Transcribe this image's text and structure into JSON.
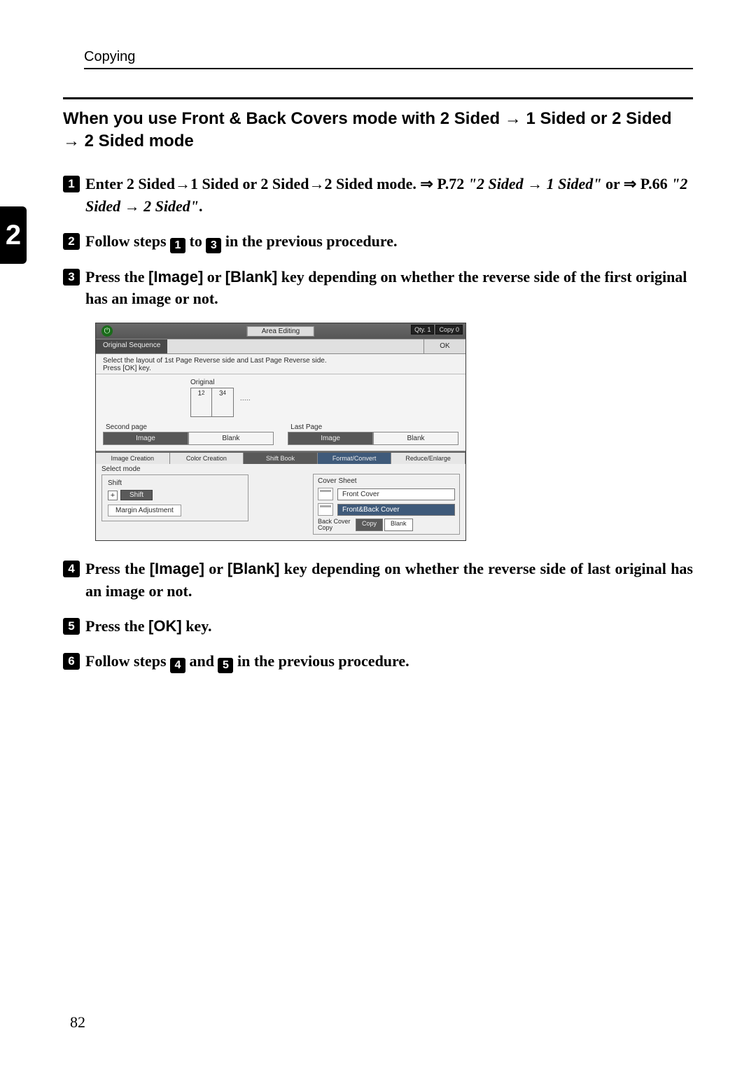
{
  "running_head": "Copying",
  "chapter_tab": "2",
  "section_title_parts": {
    "a": "When you use Front & Back Covers mode with 2 Sided ",
    "b": " 1 Sided or 2 Sided ",
    "c": " 2 Sided mode"
  },
  "page_number": "82",
  "steps": {
    "s1": {
      "a": "Enter 2 Sided",
      "b": "1 Sided or 2 Sided",
      "c": "2 Sided mode. ",
      "p72": " P.72 ",
      "ref1a": "\"2 Sided ",
      "ref1b": " 1 Sided\"",
      "or": " or ",
      "p66": " P.66 ",
      "ref2a": "\"2 Sided ",
      "ref2b": " 2 Sided\"",
      "dot": "."
    },
    "s2": {
      "a": "Follow steps ",
      "b": " to ",
      "c": " in the previous procedure.",
      "n1": "1",
      "n2": "3"
    },
    "s3": {
      "a": "Press the ",
      "img": "[Image]",
      "b": " or ",
      "blank": "[Blank]",
      "c": " key depending on whether the reverse side of the first original has an image or not."
    },
    "s4": {
      "a": "Press the ",
      "img": "[Image]",
      "b": " or ",
      "blank": "[Blank]",
      "c": " key depending on whether the reverse side of last original has an image or not."
    },
    "s5": {
      "a": "Press the ",
      "ok": "[OK]",
      "b": " key."
    },
    "s6": {
      "a": "Follow steps ",
      "b": " and ",
      "c": " in the previous procedure.",
      "n1": "4",
      "n2": "5"
    }
  },
  "screenshot": {
    "area_editing": "Area Editing",
    "qty_label": "Qty.",
    "qty_value": "1",
    "copy_label": "Copy",
    "copy_value": "0",
    "orig_seq": "Original Sequence",
    "ok": "OK",
    "hint1": "Select the layout of 1st Page Reverse side and Last Page Reverse side.",
    "hint2": "Press [OK] key.",
    "original_label": "Original",
    "p1": "1",
    "p3": "3",
    "p2": "2",
    "p4": "4",
    "second_page": "Second page",
    "last_page": "Last Page",
    "image": "Image",
    "blank": "Blank",
    "tabs": {
      "t1": "Image Creation",
      "t2": "Color Creation",
      "t3": "Shift Book",
      "t4": "Format/Convert",
      "t5": "Reduce/Enlarge"
    },
    "select_mode": "Select mode",
    "shift_group": "Shift",
    "shift_btn": "Shift",
    "margin_adjust": "Margin Adjustment",
    "cover_sheet": "Cover Sheet",
    "front_cover": "Front Cover",
    "front_back_cover": "Front&Back Cover",
    "back_cover_label": "Back Cover Copy",
    "copy_btn": "Copy",
    "blank_btn": "Blank"
  }
}
